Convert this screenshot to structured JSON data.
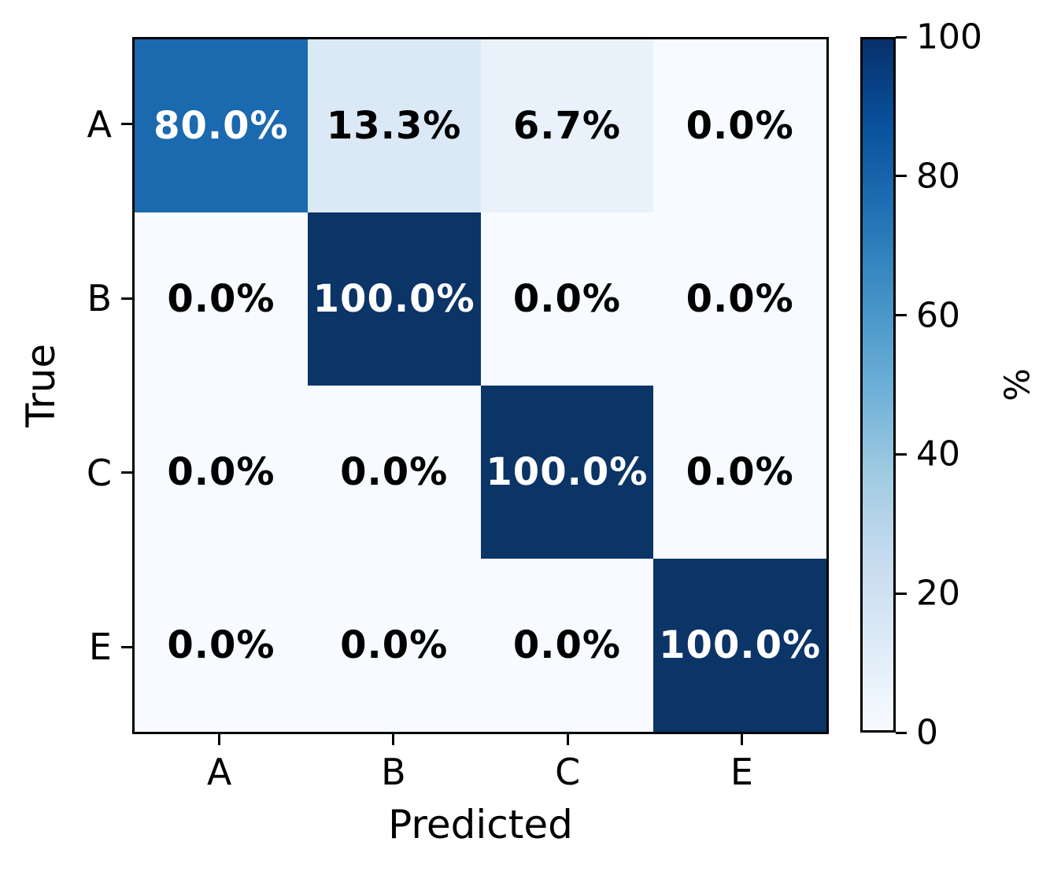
{
  "chart_data": {
    "type": "heatmap",
    "title": "",
    "xlabel": "Predicted",
    "ylabel": "True",
    "x_categories": [
      "A",
      "B",
      "C",
      "E"
    ],
    "y_categories": [
      "A",
      "B",
      "C",
      "E"
    ],
    "values_percent": [
      [
        80.0,
        13.3,
        6.7,
        0.0
      ],
      [
        0.0,
        100.0,
        0.0,
        0.0
      ],
      [
        0.0,
        0.0,
        100.0,
        0.0
      ],
      [
        0.0,
        0.0,
        0.0,
        100.0
      ]
    ],
    "annotations": [
      [
        "80.0%",
        "13.3%",
        "6.7%",
        "0.0%"
      ],
      [
        "0.0%",
        "100.0%",
        "0.0%",
        "0.0%"
      ],
      [
        "0.0%",
        "0.0%",
        "100.0%",
        "0.0%"
      ],
      [
        "0.0%",
        "0.0%",
        "0.0%",
        "100.0%"
      ]
    ],
    "cell_colors": [
      [
        "#1b69af",
        "#dbe9f6",
        "#e9f2fa",
        "#f7fbff"
      ],
      [
        "#f7fbff",
        "#0b3467",
        "#f7fbff",
        "#f7fbff"
      ],
      [
        "#f7fbff",
        "#f7fbff",
        "#0b3467",
        "#f7fbff"
      ],
      [
        "#f7fbff",
        "#f7fbff",
        "#f7fbff",
        "#0b3467"
      ]
    ],
    "annotation_colors": [
      [
        "#ffffff",
        "#000000",
        "#000000",
        "#000000"
      ],
      [
        "#000000",
        "#ffffff",
        "#000000",
        "#000000"
      ],
      [
        "#000000",
        "#000000",
        "#ffffff",
        "#000000"
      ],
      [
        "#000000",
        "#000000",
        "#000000",
        "#ffffff"
      ]
    ],
    "colorbar": {
      "label": "%",
      "range": [
        0,
        100
      ],
      "ticks": [
        100,
        80,
        60,
        40,
        20,
        0
      ],
      "tick_labels": [
        "100",
        "80",
        "60",
        "40",
        "20",
        "0"
      ],
      "colormap": "Blues",
      "gradient_stops_top_to_bottom": [
        "#08306b",
        "#08519c",
        "#2171b5",
        "#4292c6",
        "#6baed6",
        "#9ecae1",
        "#c6dbef",
        "#deebf7",
        "#f7fbff"
      ]
    },
    "grid": false,
    "legend_position": "colorbar-right",
    "spine_color": "#000000"
  }
}
